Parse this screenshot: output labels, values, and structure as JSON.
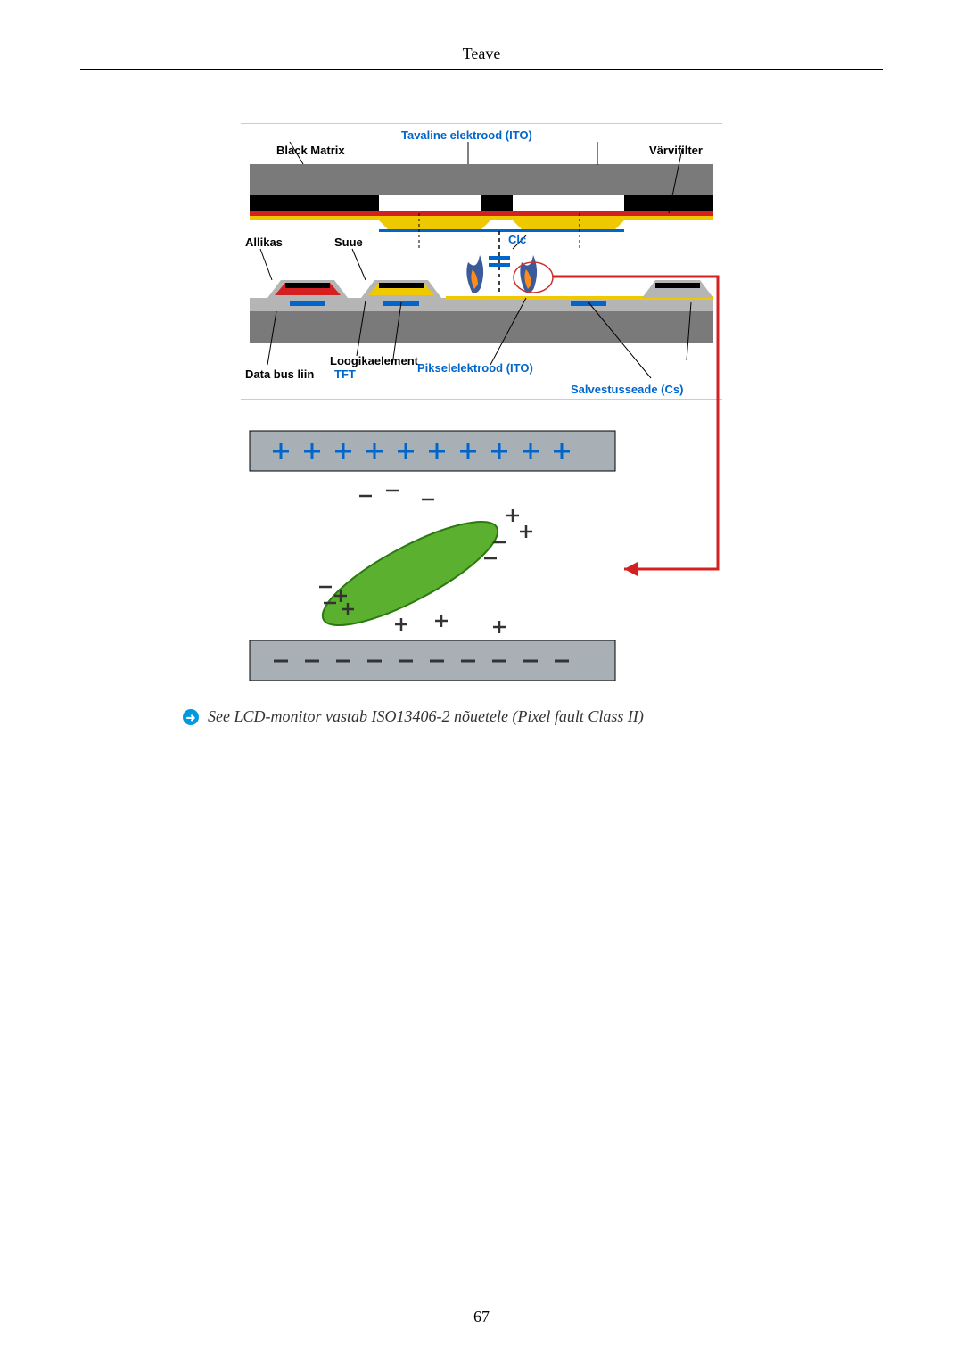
{
  "header": {
    "title": "Teave"
  },
  "footer": {
    "page_number": "67"
  },
  "note": {
    "text": "See LCD-monitor vastab ISO13406-2 nõuetele (Pixel fault Class II)"
  },
  "diagram1": {
    "labels": {
      "tavaline_elektrood": "Tavaline elektrood (ITO)",
      "black_matrix": "Black Matrix",
      "varvifilter": "Värvifilter",
      "allikas": "Allikas",
      "suue": "Suue",
      "clc": "Clc",
      "loogikaelement": "Loogikaelement",
      "data_bus_liin": "Data bus liin",
      "tft": "TFT",
      "pikselelektrood": "Pikselelektrood (ITO)",
      "salvestusseade": "Salvestusseade (Cs)"
    },
    "colors": {
      "gray_dark": "#7a7a7a",
      "gray_light": "#b5b5b5",
      "black": "#000000",
      "red": "#d42020",
      "yellow": "#f0c800",
      "blue": "#0066cc",
      "flame_orange": "#ff8c1a",
      "flame_blue": "#3a5a9a",
      "circle_red": "#cc3333"
    }
  },
  "diagram2": {
    "colors": {
      "plate_gray": "#a8b0b5",
      "plus_blue": "#0066cc",
      "molecule_green": "#5cb030",
      "molecule_border": "#2a7a10",
      "charge_dark": "#333333"
    },
    "top_plus_count": 10,
    "bottom_minus_count": 10
  },
  "connector": {
    "color": "#d42020"
  }
}
